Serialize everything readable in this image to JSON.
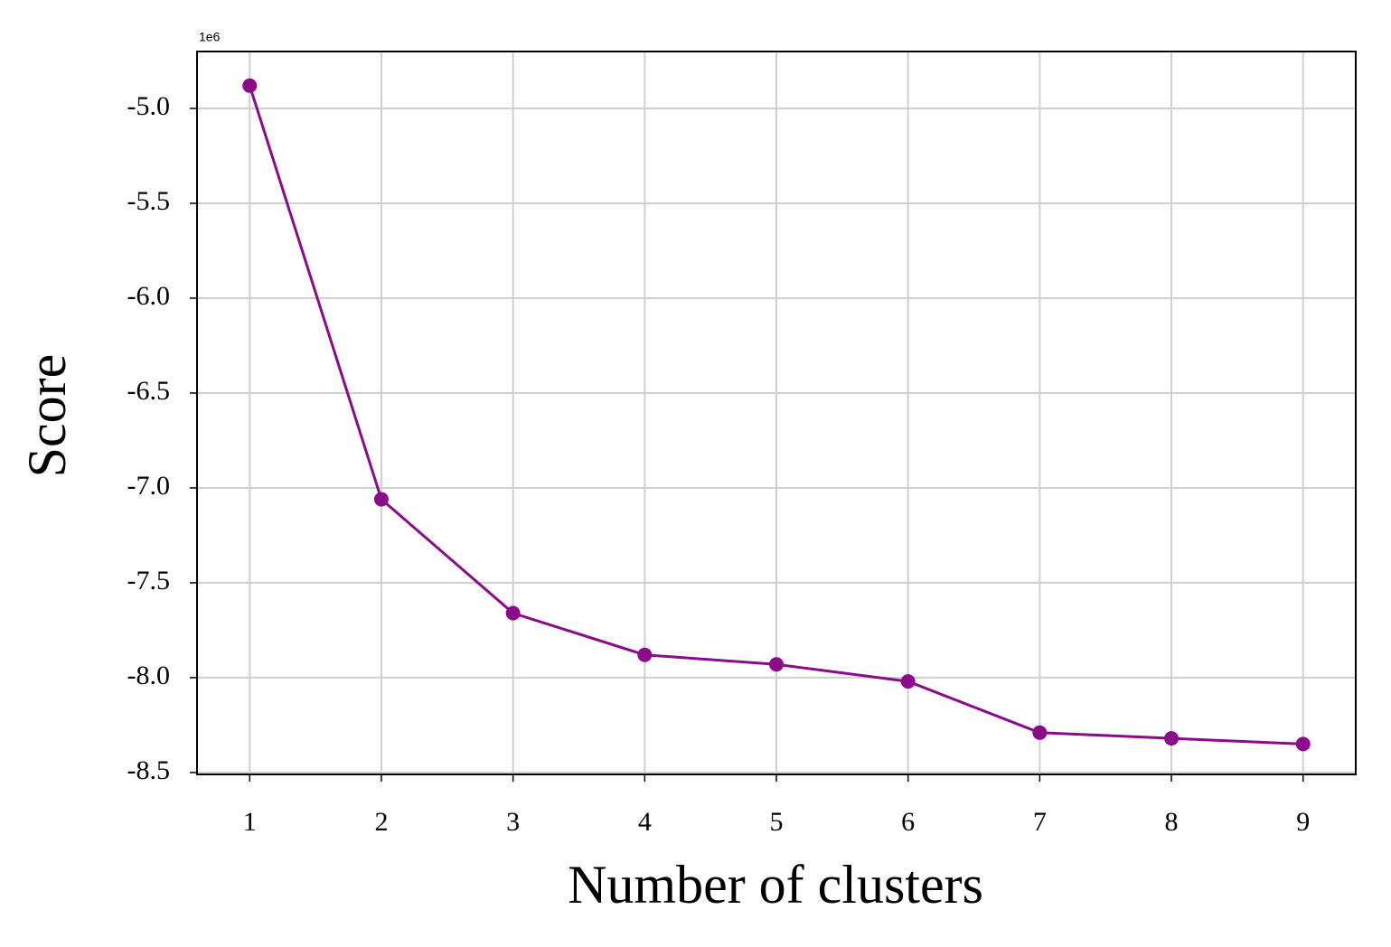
{
  "chart_data": {
    "type": "line",
    "x_label": "Number of clusters",
    "y_label": "Score",
    "offset_label": "1e6",
    "x": [
      1,
      2,
      3,
      4,
      5,
      6,
      7,
      8,
      9
    ],
    "values": [
      -4.88,
      -7.06,
      -7.66,
      -7.88,
      -7.93,
      -8.02,
      -8.29,
      -8.32,
      -8.35
    ],
    "color": "#8b0a8b",
    "xlim": [
      0.6,
      9.4
    ],
    "xticks": [
      1,
      2,
      3,
      4,
      5,
      6,
      7,
      8,
      9
    ],
    "ylim": [
      -8.51,
      -4.7
    ],
    "yticks": [
      {
        "value": -5,
        "label": "-5.0"
      },
      {
        "value": -5.5,
        "label": "-5.5"
      },
      {
        "value": -6,
        "label": "-6.0"
      },
      {
        "value": -6.5,
        "label": "-6.5"
      },
      {
        "value": -7,
        "label": "-7.0"
      },
      {
        "value": -7.5,
        "label": "-7.5"
      },
      {
        "value": -8,
        "label": "-8.0"
      },
      {
        "value": -8.5,
        "label": "-8.5"
      }
    ],
    "grid": true
  }
}
